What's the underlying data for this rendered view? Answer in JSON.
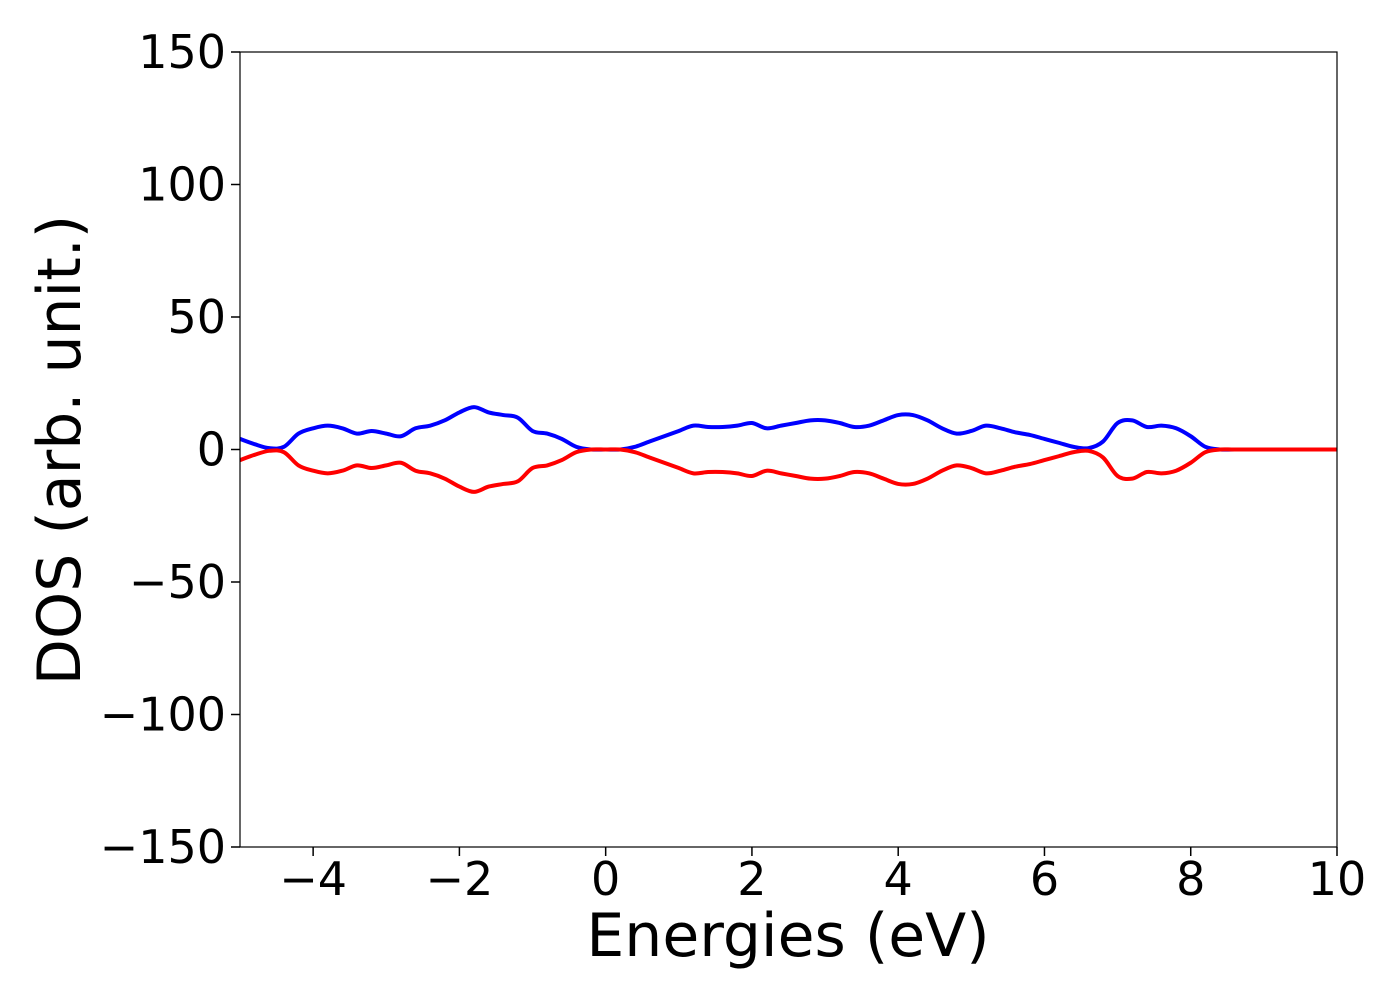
{
  "chart_data": {
    "type": "line",
    "xlabel": "Energies (eV)",
    "ylabel": "DOS (arb. unit.)",
    "xlim": [
      -5,
      10
    ],
    "ylim": [
      -150,
      150
    ],
    "xticks": [
      -4,
      -2,
      0,
      2,
      4,
      6,
      8,
      10
    ],
    "xtick_labels": [
      "−4",
      "−2",
      "0",
      "2",
      "4",
      "6",
      "8",
      "10"
    ],
    "yticks": [
      -150,
      -100,
      -50,
      0,
      50,
      100,
      150
    ],
    "ytick_labels": [
      "−150",
      "−100",
      "−50",
      "0",
      "50",
      "100",
      "150"
    ],
    "grid": false,
    "series": [
      {
        "color": "#0000ff",
        "x": [
          -5.0,
          -4.8,
          -4.6,
          -4.4,
          -4.2,
          -4.0,
          -3.8,
          -3.6,
          -3.4,
          -3.2,
          -3.0,
          -2.8,
          -2.6,
          -2.4,
          -2.2,
          -2.0,
          -1.8,
          -1.6,
          -1.4,
          -1.2,
          -1.0,
          -0.8,
          -0.6,
          -0.4,
          -0.2,
          0.0,
          0.2,
          0.4,
          0.6,
          0.8,
          1.0,
          1.2,
          1.4,
          1.6,
          1.8,
          2.0,
          2.2,
          2.4,
          2.6,
          2.8,
          3.0,
          3.2,
          3.4,
          3.6,
          3.8,
          4.0,
          4.2,
          4.4,
          4.6,
          4.8,
          5.0,
          5.2,
          5.4,
          5.6,
          5.8,
          6.0,
          6.2,
          6.4,
          6.6,
          6.8,
          7.0,
          7.2,
          7.4,
          7.6,
          7.8,
          8.0,
          8.2,
          8.4,
          8.6,
          9.0,
          9.5,
          10.0
        ],
        "y": [
          4,
          2,
          0.5,
          1,
          6,
          8,
          9,
          8,
          6,
          7,
          6,
          5,
          8,
          9,
          11,
          14,
          16,
          14,
          13,
          12,
          7,
          6,
          4,
          1,
          0,
          0,
          0,
          1,
          3,
          5,
          7,
          9,
          8.5,
          8.5,
          9,
          10,
          8,
          9,
          10,
          11,
          11,
          10,
          8.5,
          9,
          11,
          13,
          13,
          11,
          8,
          6,
          7,
          9,
          8,
          6.5,
          5.5,
          4,
          2.5,
          1,
          0.5,
          3,
          10,
          11,
          8.5,
          9,
          8,
          5,
          1,
          0,
          0,
          0,
          0,
          0
        ]
      },
      {
        "color": "#ff0000",
        "x": [
          -5.0,
          -4.8,
          -4.6,
          -4.4,
          -4.2,
          -4.0,
          -3.8,
          -3.6,
          -3.4,
          -3.2,
          -3.0,
          -2.8,
          -2.6,
          -2.4,
          -2.2,
          -2.0,
          -1.8,
          -1.6,
          -1.4,
          -1.2,
          -1.0,
          -0.8,
          -0.6,
          -0.4,
          -0.2,
          0.0,
          0.2,
          0.4,
          0.6,
          0.8,
          1.0,
          1.2,
          1.4,
          1.6,
          1.8,
          2.0,
          2.2,
          2.4,
          2.6,
          2.8,
          3.0,
          3.2,
          3.4,
          3.6,
          3.8,
          4.0,
          4.2,
          4.4,
          4.6,
          4.8,
          5.0,
          5.2,
          5.4,
          5.6,
          5.8,
          6.0,
          6.2,
          6.4,
          6.6,
          6.8,
          7.0,
          7.2,
          7.4,
          7.6,
          7.8,
          8.0,
          8.2,
          8.4,
          8.6,
          9.0,
          9.5,
          10.0
        ],
        "y": [
          -4,
          -2,
          -0.5,
          -1,
          -6,
          -8,
          -9,
          -8,
          -6,
          -7,
          -6,
          -5,
          -8,
          -9,
          -11,
          -14,
          -16,
          -14,
          -13,
          -12,
          -7,
          -6,
          -4,
          -1,
          0,
          0,
          0,
          -1,
          -3,
          -5,
          -7,
          -9,
          -8.5,
          -8.5,
          -9,
          -10,
          -8,
          -9,
          -10,
          -11,
          -11,
          -10,
          -8.5,
          -9,
          -11,
          -13,
          -13,
          -11,
          -8,
          -6,
          -7,
          -9,
          -8,
          -6.5,
          -5.5,
          -4,
          -2.5,
          -1,
          -0.5,
          -3,
          -10,
          -11,
          -8.5,
          -9,
          -8,
          -5,
          -1,
          0,
          0,
          0,
          0,
          0
        ]
      }
    ]
  }
}
